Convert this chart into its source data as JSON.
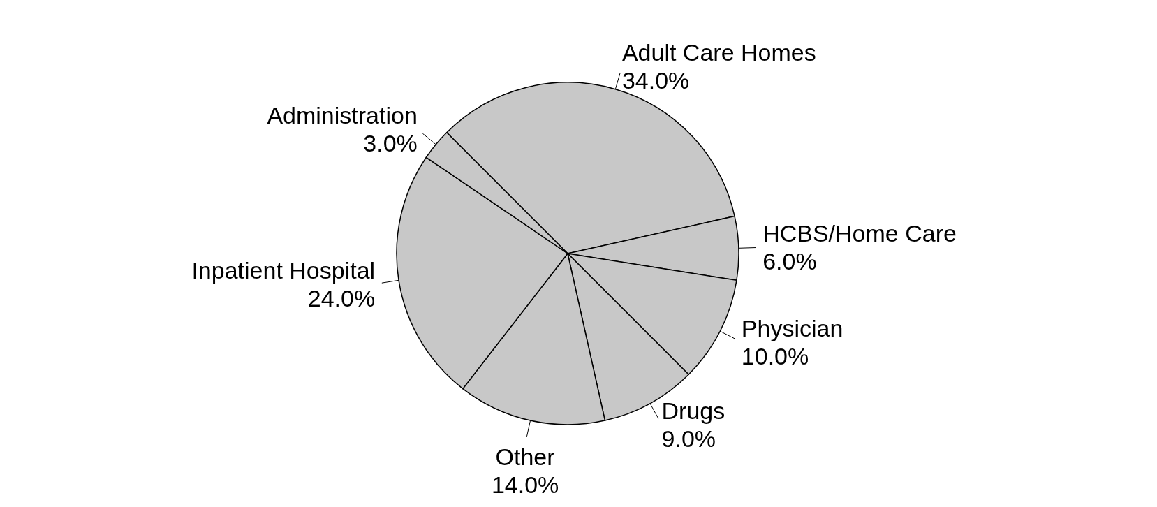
{
  "chart_data": {
    "type": "pie",
    "categories": [
      "Adult Care Homes",
      "HCBS/Home Care",
      "Physician",
      "Drugs",
      "Other",
      "Inpatient Hospital",
      "Administration"
    ],
    "values": [
      34,
      6,
      10,
      9,
      14,
      24,
      3
    ],
    "value_labels": [
      "34.0%",
      "6.0%",
      "10.0%",
      "9.0%",
      "14.0%",
      "24.0%",
      "3.0%"
    ],
    "colors": [
      "#c8c8c8",
      "#c8c8c8",
      "#c8c8c8",
      "#c8c8c8",
      "#c8c8c8",
      "#c8c8c8",
      "#c8c8c8"
    ]
  }
}
